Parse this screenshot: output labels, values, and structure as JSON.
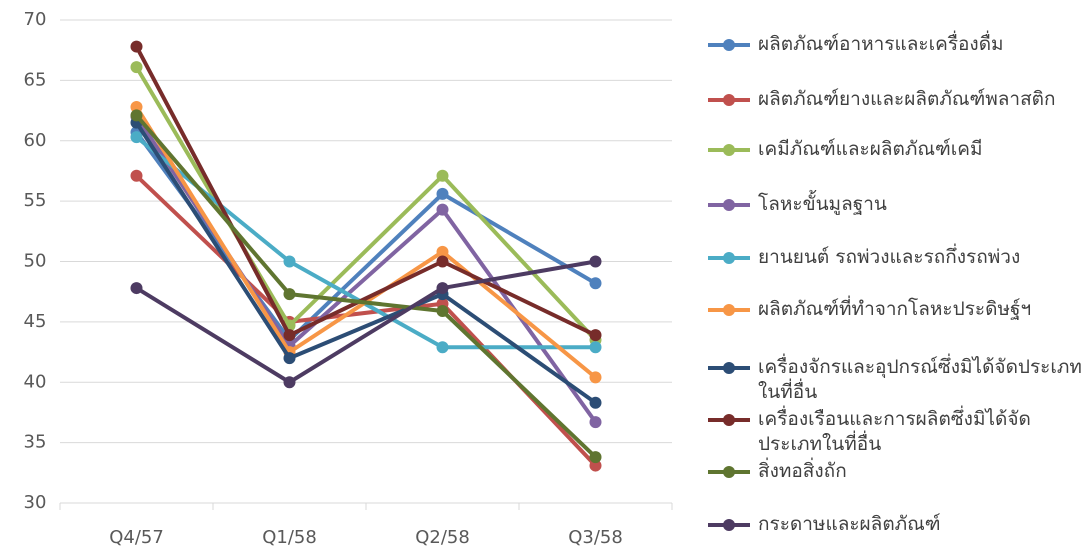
{
  "chart_data": {
    "type": "line",
    "categories": [
      "Q4/57",
      "Q1/58",
      "Q2/58",
      "Q3/58"
    ],
    "ylim": [
      30,
      70
    ],
    "yticks": [
      30,
      35,
      40,
      45,
      50,
      55,
      60,
      65,
      70
    ],
    "grid": true,
    "legend": "right",
    "series": [
      {
        "name": "ผลิตภัณฑ์อาหารและเครื่องดื่ม",
        "color": "#4f81bd",
        "values": [
          60.7,
          43.5,
          55.6,
          48.2
        ]
      },
      {
        "name": "ผลิตภัณฑ์ยางและผลิตภัณฑ์พลาสติก",
        "color": "#c0504d",
        "values": [
          57.1,
          45.0,
          46.5,
          33.1
        ]
      },
      {
        "name": "เคมีภัณฑ์และผลิตภัณฑ์เคมี",
        "color": "#9bbb59",
        "values": [
          66.1,
          44.7,
          57.1,
          43.5
        ]
      },
      {
        "name": "โลหะขั้นมูลฐาน",
        "color": "#8064a2",
        "values": [
          62.0,
          43.0,
          54.3,
          36.7
        ]
      },
      {
        "name": "ยานยนต์ รถพ่วงและรถกึ่งรถพ่วง",
        "color": "#4bacc6",
        "values": [
          60.3,
          50.0,
          42.9,
          42.9
        ]
      },
      {
        "name": "ผลิตภัณฑ์ที่ทำจากโลหะประดิษฐ์ฯ",
        "color": "#f79646",
        "values": [
          62.8,
          42.5,
          50.8,
          40.4
        ]
      },
      {
        "name": "เครื่องจักรและอุปกรณ์ซึ่งมิได้จัดประเภทในที่อื่น",
        "color": "#2c4d75",
        "values": [
          61.5,
          42.0,
          47.3,
          38.3
        ]
      },
      {
        "name": "เครื่องเรือนและการผลิตซึ่งมิได้จัดประเภทในที่อื่น",
        "color": "#772c2a",
        "values": [
          67.8,
          43.9,
          50.0,
          43.9
        ]
      },
      {
        "name": "สิ่งทอสิ่งถัก",
        "color": "#5f7530",
        "values": [
          62.1,
          47.3,
          45.9,
          33.8
        ]
      },
      {
        "name": "กระดาษและผลิตภัณฑ์",
        "color": "#4d3b62",
        "values": [
          47.8,
          40.0,
          47.8,
          50.0
        ]
      }
    ]
  }
}
